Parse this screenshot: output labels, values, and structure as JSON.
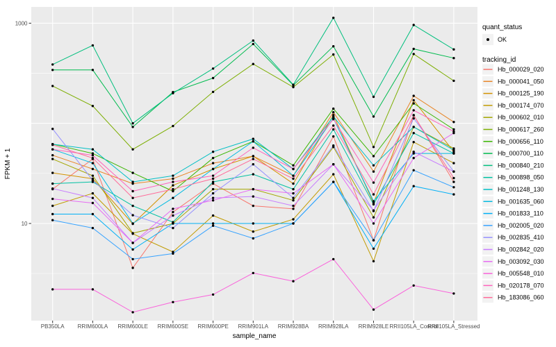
{
  "chart_data": {
    "type": "line",
    "title": "",
    "xlabel": "sample_name",
    "ylabel": "FPKM + 1",
    "y_scale": "log10",
    "ylim": [
      1.07,
      1470
    ],
    "grid": "on",
    "legend_position": "right",
    "y_major_ticks": [
      {
        "value": 10,
        "label": "10"
      },
      {
        "value": 1000,
        "label": "1000"
      }
    ],
    "y_gridlines_major": [
      10,
      100,
      1000
    ],
    "y_gridlines_minor": [
      3.162,
      31.62,
      316.2
    ],
    "categories": [
      "PB350LA",
      "RRIM600LA",
      "RRIM600LE",
      "RRIM600SE",
      "RRIM600PE",
      "RRIM901LA",
      "RRIM928BA",
      "RRIM928LA",
      "RRIM928LE",
      "RRII105LA_Control",
      "RRII105LA_Stressed"
    ],
    "point_marker": {
      "shape": "circle",
      "color": "#000000",
      "radius": 1.7
    },
    "series": [
      {
        "name": "Hb_000029_020",
        "color": "#F8766D",
        "values": [
          22,
          44,
          3.6,
          13,
          25,
          15,
          14,
          74,
          6.8,
          121,
          26
        ]
      },
      {
        "name": "Hb_000041_050",
        "color": "#E88526",
        "values": [
          48,
          35,
          25,
          28,
          40,
          47,
          30,
          129,
          33,
          188,
          103
        ]
      },
      {
        "name": "Hb_000125_190",
        "color": "#D39200",
        "values": [
          32,
          28,
          9.9,
          24,
          35,
          47,
          25,
          121,
          16,
          170,
          52
        ]
      },
      {
        "name": "Hb_000174_070",
        "color": "#C09B00",
        "values": [
          15,
          20,
          7.9,
          5.2,
          12,
          8.3,
          11,
          31,
          4.2,
          65,
          40
        ]
      },
      {
        "name": "Hb_000602_010",
        "color": "#A3A500",
        "values": [
          44,
          30,
          8,
          10,
          22,
          22,
          17,
          58,
          11.5,
          92,
          56
        ]
      },
      {
        "name": "Hb_000617_260",
        "color": "#7CAE00",
        "values": [
          236,
          149,
          55,
          94,
          206,
          391,
          230,
          487,
          58,
          492,
          266
        ]
      },
      {
        "name": "Hb_000656_110",
        "color": "#39B600",
        "values": [
          62,
          50,
          32,
          21,
          45,
          66,
          38,
          140,
          47,
          158,
          87
        ]
      },
      {
        "name": "Hb_000700_110",
        "color": "#00BB4E",
        "values": [
          341,
          341,
          92,
          205,
          283,
          620,
          240,
          588,
          117,
          553,
          448
        ]
      },
      {
        "name": "Hb_000840_210",
        "color": "#00BF7D",
        "values": [
          387,
          600,
          100,
          200,
          352,
          670,
          243,
          1130,
          184,
          960,
          547
        ]
      },
      {
        "name": "Hb_000898_050",
        "color": "#00C1A3",
        "values": [
          25,
          26,
          15,
          10.3,
          26,
          31,
          22,
          87,
          15.5,
          80,
          50
        ]
      },
      {
        "name": "Hb_001248_130",
        "color": "#00BFC4",
        "values": [
          62,
          55,
          26,
          30,
          52,
          70,
          35,
          117,
          38,
          92,
          54
        ]
      },
      {
        "name": "Hb_001635_060",
        "color": "#00BAE0",
        "values": [
          55,
          40,
          10,
          18,
          35,
          66,
          30,
          112,
          16.7,
          50,
          50
        ]
      },
      {
        "name": "Hb_001833_110",
        "color": "#00B0F6",
        "values": [
          12.4,
          12.4,
          5.5,
          10,
          10,
          10,
          10,
          26,
          5.6,
          23.6,
          19.5
        ]
      },
      {
        "name": "Hb_002005_020",
        "color": "#35A2FF",
        "values": [
          10.8,
          9,
          4.4,
          5,
          9.5,
          7.1,
          10,
          26,
          6.8,
          34,
          23
        ]
      },
      {
        "name": "Hb_002835_410",
        "color": "#9590FF",
        "values": [
          88,
          27,
          12.1,
          9,
          20,
          39,
          18,
          60,
          13.3,
          112,
          33
        ]
      },
      {
        "name": "Hb_002842_020",
        "color": "#C77CFF",
        "values": [
          22.3,
          18,
          6.4,
          12,
          18,
          18.6,
          15,
          39,
          13.5,
          52,
          33
        ]
      },
      {
        "name": "Hb_003092_030",
        "color": "#E76BF3",
        "values": [
          17.6,
          16,
          6.4,
          14,
          17,
          22,
          20,
          39,
          10,
          45,
          80
        ]
      },
      {
        "name": "Hb_005548_010",
        "color": "#FA62DB",
        "values": [
          2.2,
          2.2,
          1.3,
          1.64,
          1.95,
          3.2,
          2.65,
          4.4,
          1.38,
          2.4,
          2.0
        ]
      },
      {
        "name": "Hb_020178_070",
        "color": "#FF62BC",
        "values": [
          55,
          48,
          21,
          26,
          30,
          57,
          35,
          110,
          25.6,
          135,
          83
        ]
      },
      {
        "name": "Hb_183086_060",
        "color": "#FF6A98",
        "values": [
          61,
          45,
          18,
          22,
          28,
          44,
          28,
          95,
          19.5,
          120,
          28.4
        ]
      }
    ]
  },
  "legend": {
    "quant_status_title": "quant_status",
    "quant_status_items": [
      {
        "label": "OK",
        "marker": "point"
      }
    ],
    "tracking_title": "tracking_id"
  },
  "panel": {
    "bg": "#EBEBEB",
    "grid_color": "#FFFFFF",
    "key_bg": "#F2F2F2"
  },
  "text_colors": {
    "tick_label": "#4D4D4D",
    "axis_title": "#000000",
    "tick_mark": "#333333"
  }
}
